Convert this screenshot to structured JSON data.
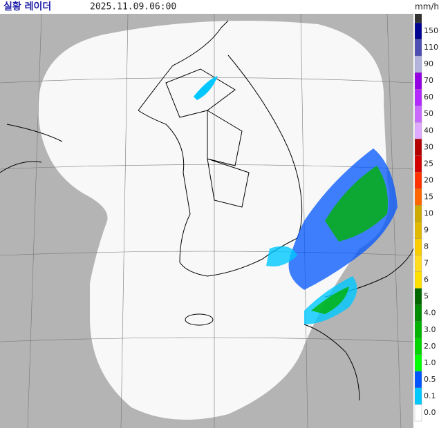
{
  "header": {
    "title": "실황 레이더",
    "timestamp": "2025.11.09.06:00",
    "unit": "mm/h"
  },
  "legend": {
    "top_color": "#333333",
    "items": [
      {
        "label": "150",
        "color": "#000390"
      },
      {
        "label": "110",
        "color": "#4c4eb1"
      },
      {
        "label": "90",
        "color": "#b3b4de"
      },
      {
        "label": "70",
        "color": "#9300e4"
      },
      {
        "label": "60",
        "color": "#b329ff"
      },
      {
        "label": "50",
        "color": "#c969ff"
      },
      {
        "label": "40",
        "color": "#e0a9ff"
      },
      {
        "label": "30",
        "color": "#b40000"
      },
      {
        "label": "25",
        "color": "#d20000"
      },
      {
        "label": "20",
        "color": "#ff3200"
      },
      {
        "label": "15",
        "color": "#ff6600"
      },
      {
        "label": "10",
        "color": "#ccaa00"
      },
      {
        "label": "9",
        "color": "#e0b900"
      },
      {
        "label": "8",
        "color": "#f9cd00"
      },
      {
        "label": "7",
        "color": "#ffdc1f"
      },
      {
        "label": "6",
        "color": "#ffe100"
      },
      {
        "label": "5",
        "color": "#006600"
      },
      {
        "label": "4.0",
        "color": "#008c00"
      },
      {
        "label": "3.0",
        "color": "#00b300"
      },
      {
        "label": "2.0",
        "color": "#00d500"
      },
      {
        "label": "1.0",
        "color": "#00ff00"
      },
      {
        "label": "0.5",
        "color": "#0055ff"
      },
      {
        "label": "0.1",
        "color": "#00c8ff"
      },
      {
        "label": "0.0",
        "color": "#ffffff"
      }
    ]
  }
}
